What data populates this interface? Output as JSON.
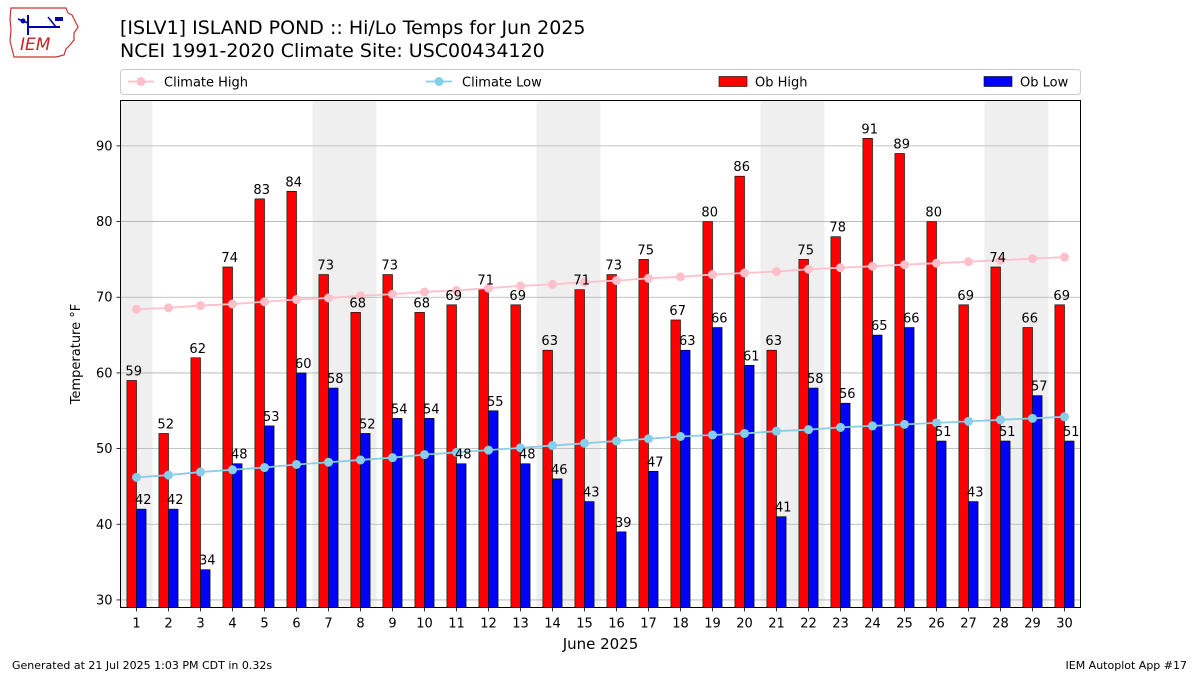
{
  "header": {
    "title_line1": "[ISLV1] ISLAND POND :: Hi/Lo Temps for Jun 2025",
    "title_line2": "NCEI 1991-2020 Climate Site: USC00434120",
    "logo_text": "IEM"
  },
  "footer": {
    "generated": "Generated at 21 Jul 2025 1:03 PM CDT in 0.32s",
    "app": "IEM Autoplot App #17"
  },
  "colors": {
    "ob_high": "#ff0000",
    "ob_low": "#0000ff",
    "climate_high": "#ffc0cb",
    "climate_low": "#87ceeb",
    "weekend_band": "#efefef",
    "grid": "#b0b0b0"
  },
  "chart_data": {
    "type": "bar",
    "xlabel": "June 2025",
    "ylabel": "Temperature °F",
    "ylim": [
      29,
      96
    ],
    "yticks": [
      30,
      40,
      50,
      60,
      70,
      80,
      90
    ],
    "grid": "horizontal",
    "legend_placement": "top",
    "shaded_days": [
      1,
      7,
      8,
      14,
      15,
      21,
      22,
      28,
      29
    ],
    "categories": [
      "1",
      "2",
      "3",
      "4",
      "5",
      "6",
      "7",
      "8",
      "9",
      "10",
      "11",
      "12",
      "13",
      "14",
      "15",
      "16",
      "17",
      "18",
      "19",
      "20",
      "21",
      "22",
      "23",
      "24",
      "25",
      "26",
      "27",
      "28",
      "29",
      "30"
    ],
    "series": [
      {
        "name": "Ob High",
        "kind": "bar",
        "values": [
          59,
          52,
          62,
          74,
          83,
          84,
          73,
          68,
          73,
          68,
          69,
          71,
          69,
          63,
          71,
          73,
          75,
          67,
          80,
          86,
          63,
          75,
          78,
          91,
          89,
          80,
          69,
          74,
          66,
          69
        ]
      },
      {
        "name": "Ob Low",
        "kind": "bar",
        "values": [
          42,
          42,
          34,
          48,
          53,
          60,
          58,
          52,
          54,
          54,
          48,
          55,
          48,
          46,
          43,
          39,
          47,
          63,
          66,
          61,
          41,
          58,
          56,
          65,
          66,
          51,
          43,
          51,
          57,
          51
        ]
      },
      {
        "name": "Climate High",
        "kind": "line",
        "values": [
          68.4,
          68.6,
          68.9,
          69.1,
          69.4,
          69.7,
          69.9,
          70.2,
          70.4,
          70.7,
          70.9,
          71.2,
          71.5,
          71.7,
          72.0,
          72.2,
          72.5,
          72.7,
          73.0,
          73.2,
          73.4,
          73.7,
          73.9,
          74.1,
          74.3,
          74.5,
          74.7,
          74.9,
          75.1,
          75.3
        ]
      },
      {
        "name": "Climate Low",
        "kind": "line",
        "values": [
          46.2,
          46.5,
          46.9,
          47.2,
          47.5,
          47.9,
          48.2,
          48.5,
          48.8,
          49.2,
          49.5,
          49.8,
          50.1,
          50.4,
          50.7,
          51.0,
          51.3,
          51.6,
          51.8,
          52.0,
          52.3,
          52.5,
          52.8,
          53.0,
          53.2,
          53.4,
          53.6,
          53.8,
          54.0,
          54.2
        ]
      }
    ]
  }
}
